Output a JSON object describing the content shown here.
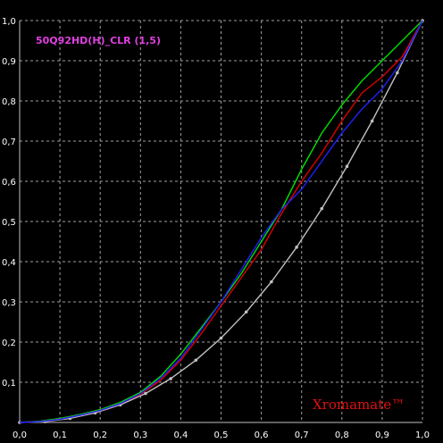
{
  "chart_data": {
    "type": "line",
    "title": "50Q92HD(H)_CLR (1,5)",
    "xlabel": "",
    "ylabel": "",
    "xlim": [
      0,
      1
    ],
    "ylim": [
      0,
      1
    ],
    "grid": true,
    "x_ticks": [
      "0,0",
      "0,1",
      "0,2",
      "0,3",
      "0,4",
      "0,5",
      "0,6",
      "0,7",
      "0,8",
      "0,9",
      "1,0"
    ],
    "y_ticks": [
      "0,1",
      "0,2",
      "0,3",
      "0,4",
      "0,5",
      "0,6",
      "0,7",
      "0,8",
      "0,9",
      "1,0"
    ],
    "series": [
      {
        "color": "#c0c0c0",
        "markers": true,
        "x": [
          0,
          0.0625,
          0.125,
          0.1875,
          0.25,
          0.3125,
          0.375,
          0.4375,
          0.5,
          0.5625,
          0.625,
          0.6875,
          0.75,
          0.8125,
          0.875,
          0.9375,
          1.0
        ],
        "y": [
          0,
          0.002,
          0.01,
          0.024,
          0.044,
          0.072,
          0.109,
          0.155,
          0.21,
          0.275,
          0.35,
          0.436,
          0.532,
          0.637,
          0.75,
          0.87,
          1.0
        ]
      },
      {
        "color": "#00e000",
        "markers": false,
        "x": [
          0,
          0.05,
          0.1,
          0.15,
          0.2,
          0.25,
          0.3,
          0.35,
          0.4,
          0.45,
          0.5,
          0.55,
          0.6,
          0.65,
          0.7,
          0.75,
          0.8,
          0.85,
          0.9,
          0.95,
          1.0
        ],
        "y": [
          0,
          0.003,
          0.01,
          0.02,
          0.032,
          0.05,
          0.075,
          0.115,
          0.17,
          0.235,
          0.3,
          0.37,
          0.45,
          0.53,
          0.63,
          0.72,
          0.79,
          0.85,
          0.9,
          0.95,
          1.0
        ]
      },
      {
        "color": "#e00000",
        "markers": false,
        "x": [
          0,
          0.05,
          0.1,
          0.15,
          0.2,
          0.25,
          0.3,
          0.35,
          0.4,
          0.45,
          0.5,
          0.55,
          0.6,
          0.65,
          0.7,
          0.75,
          0.8,
          0.85,
          0.9,
          0.95,
          1.0
        ],
        "y": [
          0,
          0.002,
          0.008,
          0.018,
          0.03,
          0.047,
          0.07,
          0.105,
          0.155,
          0.22,
          0.29,
          0.36,
          0.43,
          0.52,
          0.6,
          0.67,
          0.75,
          0.82,
          0.86,
          0.91,
          1.0
        ]
      },
      {
        "color": "#2020ff",
        "markers": false,
        "x": [
          0,
          0.05,
          0.1,
          0.15,
          0.2,
          0.25,
          0.3,
          0.35,
          0.4,
          0.45,
          0.5,
          0.55,
          0.6,
          0.65,
          0.7,
          0.75,
          0.8,
          0.85,
          0.9,
          0.95,
          1.0
        ],
        "y": [
          0,
          0.002,
          0.008,
          0.018,
          0.03,
          0.047,
          0.072,
          0.11,
          0.16,
          0.23,
          0.3,
          0.38,
          0.46,
          0.53,
          0.58,
          0.65,
          0.72,
          0.78,
          0.83,
          0.9,
          1.0
        ]
      }
    ]
  },
  "watermark": "Xromamate™",
  "colors": {
    "background": "#000000",
    "grid": "#a0a0a0",
    "axis": "#c0c0c0",
    "title": "#e040e0",
    "watermark": "#e01010"
  }
}
